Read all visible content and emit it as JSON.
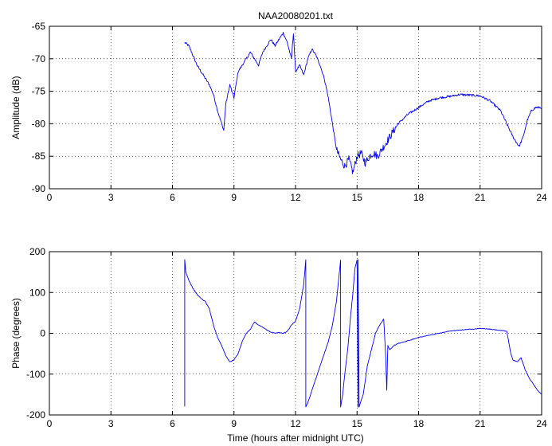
{
  "chart_data": [
    {
      "type": "line",
      "title": "NAA20080201.txt",
      "xlabel": "",
      "ylabel": "Amplitude (dB)",
      "xlim": [
        0,
        24
      ],
      "ylim": [
        -90,
        -65
      ],
      "xticks": [
        "0",
        "3",
        "6",
        "9",
        "12",
        "15",
        "18",
        "21",
        "24"
      ],
      "yticks": [
        "-90",
        "-85",
        "-80",
        "-75",
        "-70",
        "-65"
      ],
      "grid": true,
      "line_color": "#0000ff",
      "series": [
        {
          "x": [
            6.6,
            6.8,
            7.0,
            7.2,
            7.4,
            7.6,
            7.8,
            8.0,
            8.2,
            8.4,
            8.5,
            8.6,
            8.8,
            9.0,
            9.2,
            9.4,
            9.6,
            9.8,
            10.0,
            10.2,
            10.4,
            10.6,
            10.8,
            11.0,
            11.2,
            11.4,
            11.6,
            11.8,
            11.9,
            12.0,
            12.2,
            12.4,
            12.6,
            12.8,
            13.0,
            13.2,
            13.4,
            13.6,
            13.8,
            14.0,
            14.2,
            14.4,
            14.6,
            14.8,
            15.0,
            15.2,
            15.4,
            15.6,
            15.8,
            16.0,
            16.2,
            16.4,
            16.6,
            16.8,
            17.0,
            17.5,
            18.0,
            18.5,
            19.0,
            19.5,
            20.0,
            20.5,
            21.0,
            21.5,
            22.0,
            22.3,
            22.6,
            22.9,
            23.1,
            23.3,
            23.5,
            23.7,
            24.0
          ],
          "y": [
            -67.5,
            -68.0,
            -69.5,
            -71.0,
            -72.0,
            -73.0,
            -74.0,
            -75.5,
            -78.0,
            -80.0,
            -81.0,
            -77.0,
            -74.0,
            -76.0,
            -72.0,
            -71.0,
            -70.0,
            -69.0,
            -70.0,
            -71.0,
            -69.0,
            -68.0,
            -67.0,
            -68.0,
            -67.0,
            -66.0,
            -67.5,
            -70.0,
            -66.0,
            -72.0,
            -71.0,
            -72.5,
            -70.0,
            -68.5,
            -69.5,
            -71.0,
            -73.0,
            -76.0,
            -80.0,
            -84.0,
            -85.5,
            -86.5,
            -85.5,
            -87.5,
            -85.0,
            -84.5,
            -86.0,
            -85.0,
            -84.5,
            -85.0,
            -84.0,
            -83.0,
            -82.0,
            -81.0,
            -80.0,
            -78.5,
            -77.5,
            -76.5,
            -76.0,
            -75.8,
            -75.5,
            -75.6,
            -75.7,
            -76.5,
            -78.0,
            -80.0,
            -82.0,
            -83.5,
            -82.0,
            -79.5,
            -78.0,
            -77.5,
            -77.5
          ]
        }
      ]
    },
    {
      "type": "line",
      "title": "",
      "xlabel": "Time (hours after midnight UTC)",
      "ylabel": "Phase (degrees)",
      "xlim": [
        0,
        24
      ],
      "ylim": [
        -200,
        200
      ],
      "xticks": [
        "0",
        "3",
        "6",
        "9",
        "12",
        "15",
        "18",
        "21",
        "24"
      ],
      "yticks": [
        "-200",
        "-100",
        "0",
        "100",
        "200"
      ],
      "grid": true,
      "line_color": "#0000ff",
      "series": [
        {
          "x": [
            6.6,
            6.6,
            6.65,
            6.8,
            7.0,
            7.2,
            7.4,
            7.6,
            7.8,
            8.0,
            8.2,
            8.4,
            8.6,
            8.8,
            9.0,
            9.2,
            9.4,
            9.6,
            9.8,
            10.0,
            10.2,
            10.4,
            10.6,
            10.8,
            11.0,
            11.2,
            11.4,
            11.6,
            11.8,
            12.0,
            12.2,
            12.4,
            12.5,
            12.5,
            12.6,
            12.8,
            13.0,
            13.2,
            13.4,
            13.6,
            13.8,
            14.0,
            14.1,
            14.2,
            14.2,
            14.3,
            14.4,
            14.5,
            14.6,
            14.7,
            14.8,
            14.9,
            15.0,
            15.05,
            15.05,
            15.1,
            15.3,
            15.5,
            15.7,
            15.9,
            16.1,
            16.3,
            16.4,
            16.45,
            16.5,
            16.6,
            16.8,
            17.0,
            17.5,
            18.0,
            18.5,
            19.0,
            19.5,
            20.0,
            20.5,
            21.0,
            21.5,
            22.0,
            22.3,
            22.5,
            22.6,
            22.8,
            23.0,
            23.2,
            23.4,
            23.6,
            23.8,
            24.0
          ],
          "y": [
            -180,
            180,
            150,
            130,
            110,
            95,
            85,
            78,
            60,
            20,
            -10,
            -30,
            -55,
            -70,
            -65,
            -50,
            -20,
            0,
            10,
            28,
            20,
            15,
            8,
            3,
            0,
            2,
            0,
            5,
            20,
            30,
            60,
            120,
            180,
            -180,
            -170,
            -140,
            -110,
            -80,
            -50,
            -20,
            20,
            80,
            130,
            180,
            -180,
            -150,
            -100,
            -60,
            -10,
            50,
            100,
            160,
            180,
            -180,
            180,
            -180,
            -150,
            -80,
            -40,
            0,
            20,
            35,
            -60,
            -140,
            -30,
            -40,
            -30,
            -25,
            -18,
            -10,
            -5,
            0,
            5,
            8,
            10,
            12,
            10,
            7,
            5,
            -50,
            -65,
            -70,
            -60,
            -90,
            -110,
            -125,
            -140,
            -150
          ]
        }
      ]
    }
  ]
}
